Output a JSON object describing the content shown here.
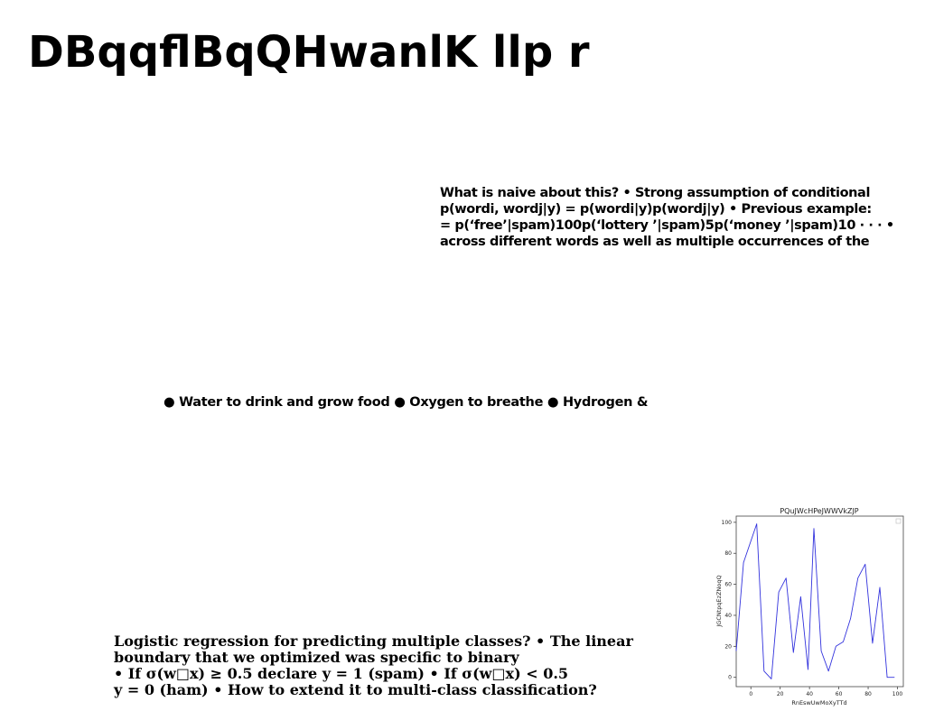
{
  "title": "DBqqflBqQHwanlK llp r",
  "block1": {
    "lines": [
      "What is naive about this? • Strong assumption of conditional",
      "p(wordi, wordj|y) = p(wordi|y)p(wordj|y) • Previous example:",
      "= p(‘free’|spam)100p(‘lottery ’|spam)5p(‘money ’|spam)10 · · · •",
      "across different words as well as multiple occurrences of the"
    ]
  },
  "block2": {
    "text": "● Water to drink and grow food ● Oxygen to breathe ● Hydrogen &"
  },
  "block3": {
    "lines": [
      "Logistic regression for predicting multiple classes? • The linear",
      "boundary that we optimized was specific to binary",
      "• If σ(w□x) ≥ 0.5 declare y = 1 (spam) • If σ(w□x) < 0.5",
      "y = 0 (ham) • How to extend it to multi-class classification?"
    ]
  },
  "chart_data": {
    "type": "line",
    "title": "PQuJWcHPeJWWVkZJP",
    "xlabel": "RnEswUwMoXyTTd",
    "ylabel": "JGCNtpqEzZNoqQ",
    "xlim": [
      -10,
      104
    ],
    "ylim": [
      -6,
      104
    ],
    "xticks": [
      0,
      20,
      40,
      60,
      80,
      100
    ],
    "yticks": [
      0,
      20,
      40,
      60,
      80,
      100
    ],
    "grid": false,
    "series": [
      {
        "color": "#3333dd",
        "x": [
          -10,
          -5,
          4,
          9,
          14,
          19,
          24,
          29,
          34,
          39,
          43,
          48,
          53,
          58,
          63,
          68,
          73,
          78,
          83,
          88,
          93,
          98
        ],
        "y": [
          17,
          74,
          99,
          4,
          -1,
          55,
          64,
          16,
          52,
          5,
          96,
          17,
          4,
          20,
          23,
          38,
          64,
          73,
          22,
          58,
          0,
          0
        ]
      }
    ]
  }
}
